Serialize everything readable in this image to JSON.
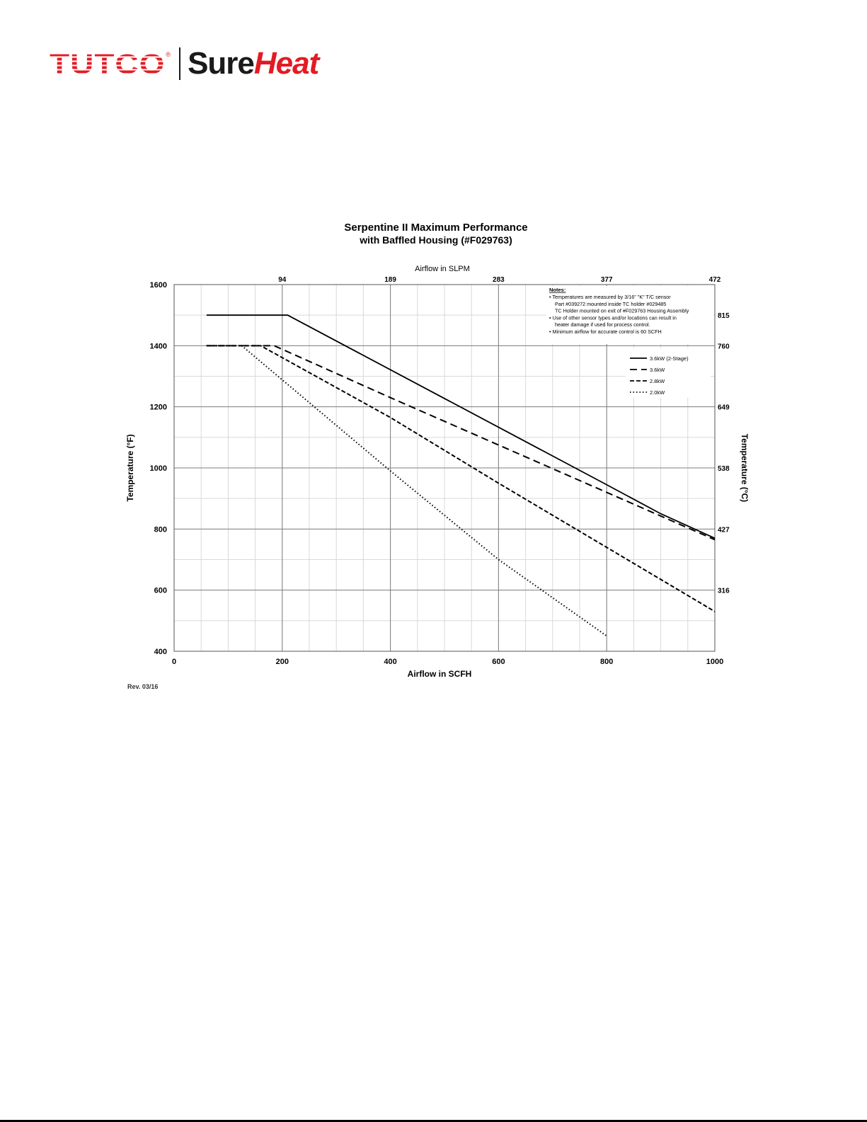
{
  "logo": {
    "brand": "TUTCO",
    "product_part1": "Sure",
    "product_part2": "Heat",
    "registered": "®"
  },
  "chart_data": {
    "type": "line",
    "title": "Serpentine II Maximum Performance",
    "subtitle": "with Baffled Housing (#F029763)",
    "xlabel": "Airflow in SCFH",
    "x2label": "Airflow in SLPM",
    "ylabel": "Temperature (°F)",
    "y2label": "Temperature (°C)",
    "xlim": [
      0,
      1000
    ],
    "ylim": [
      400,
      1600
    ],
    "x_ticks": [
      0,
      200,
      400,
      600,
      800,
      1000
    ],
    "y_ticks": [
      400,
      600,
      800,
      1000,
      1200,
      1400,
      1600
    ],
    "x2_ticks": [
      {
        "label": "94",
        "x": 200
      },
      {
        "label": "189",
        "x": 400
      },
      {
        "label": "283",
        "x": 600
      },
      {
        "label": "377",
        "x": 800
      },
      {
        "label": "472",
        "x": 1000
      }
    ],
    "y2_ticks": [
      {
        "label": "815",
        "y": 1500
      },
      {
        "label": "760",
        "y": 1400
      },
      {
        "label": "649",
        "y": 1200
      },
      {
        "label": "538",
        "y": 1000
      },
      {
        "label": "427",
        "y": 800
      },
      {
        "label": "316",
        "y": 600
      }
    ],
    "grid": true,
    "legend_position": "top-right",
    "series": [
      {
        "name": "3.6kW (2-Stage)",
        "style": "solid",
        "x": [
          60,
          210,
          800,
          900,
          1000
        ],
        "y": [
          1500,
          1500,
          945,
          850,
          770
        ]
      },
      {
        "name": "3.6kW",
        "style": "dashed",
        "x": [
          60,
          185,
          400,
          600,
          800,
          1000
        ],
        "y": [
          1400,
          1400,
          1230,
          1075,
          920,
          765
        ]
      },
      {
        "name": "2.8kW",
        "style": "short-dash",
        "x": [
          60,
          160,
          400,
          600,
          800,
          1000
        ],
        "y": [
          1400,
          1400,
          1165,
          950,
          740,
          530
        ]
      },
      {
        "name": "2.0kW",
        "style": "dotted",
        "x": [
          60,
          125,
          400,
          600,
          800
        ],
        "y": [
          1400,
          1400,
          990,
          700,
          450
        ]
      }
    ],
    "notes": {
      "heading": "Notes:",
      "lines": [
        "• Temperatures are measured by 3/16\" \"K\" T/C sensor",
        "Part #039272 mounted inside TC holder #029485",
        "TC Holder mounted on exit of #F029763 Housing Assembly",
        "• Use of other sensor types and/or locations can result in",
        "heater damage if used for process control.",
        "• Minimum airflow for accurate control is 60 SCFH"
      ]
    },
    "revision": "Rev. 03/16"
  }
}
